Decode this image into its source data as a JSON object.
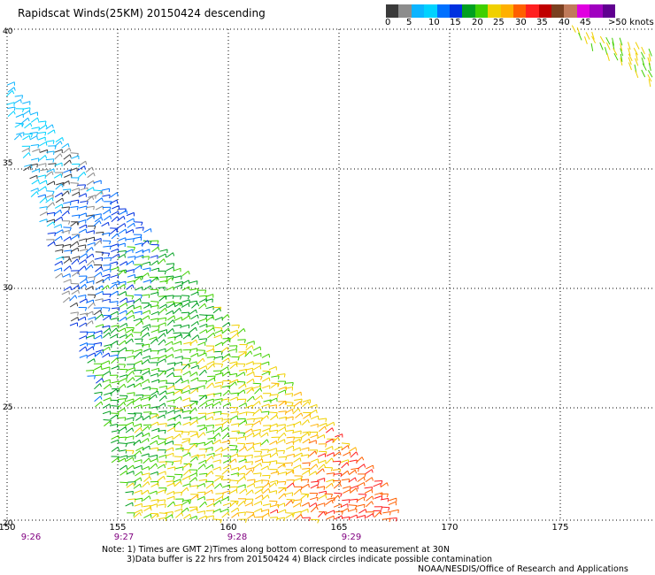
{
  "title": "Rapidscat Winds(25KM) 20150424 descending",
  "colorbar": {
    "colors": [
      "#3a3a3a",
      "#8c8c8c",
      "#0cb4ff",
      "#00d2ff",
      "#0070ff",
      "#0030e0",
      "#00a020",
      "#40d000",
      "#f0d000",
      "#ffb000",
      "#ff6000",
      "#ff2020",
      "#c00000",
      "#7a4020",
      "#c07a5a",
      "#e000e0",
      "#a000c0",
      "#600090"
    ],
    "labels": [
      "0",
      "5",
      "10",
      "15",
      "20",
      "25",
      "30",
      "35",
      "40",
      "45",
      ">50 knots"
    ]
  },
  "lat_labels": [
    "20",
    "25",
    "30",
    "35",
    "40"
  ],
  "lon_labels": [
    "150",
    "155",
    "160",
    "165",
    "170",
    "175"
  ],
  "time_labels": [
    "9:26",
    "9:27",
    "9:28",
    "9:29"
  ],
  "notes": {
    "line1": "Note: 1) Times are GMT 2)Times along bottom correspond to measurement at 30N",
    "line2": "3)Data buffer is 22 hrs from 20150424 4) Black circles indicate possible contamination"
  },
  "credit": "NOAA/NESDIS/Office of Research and Applications"
}
